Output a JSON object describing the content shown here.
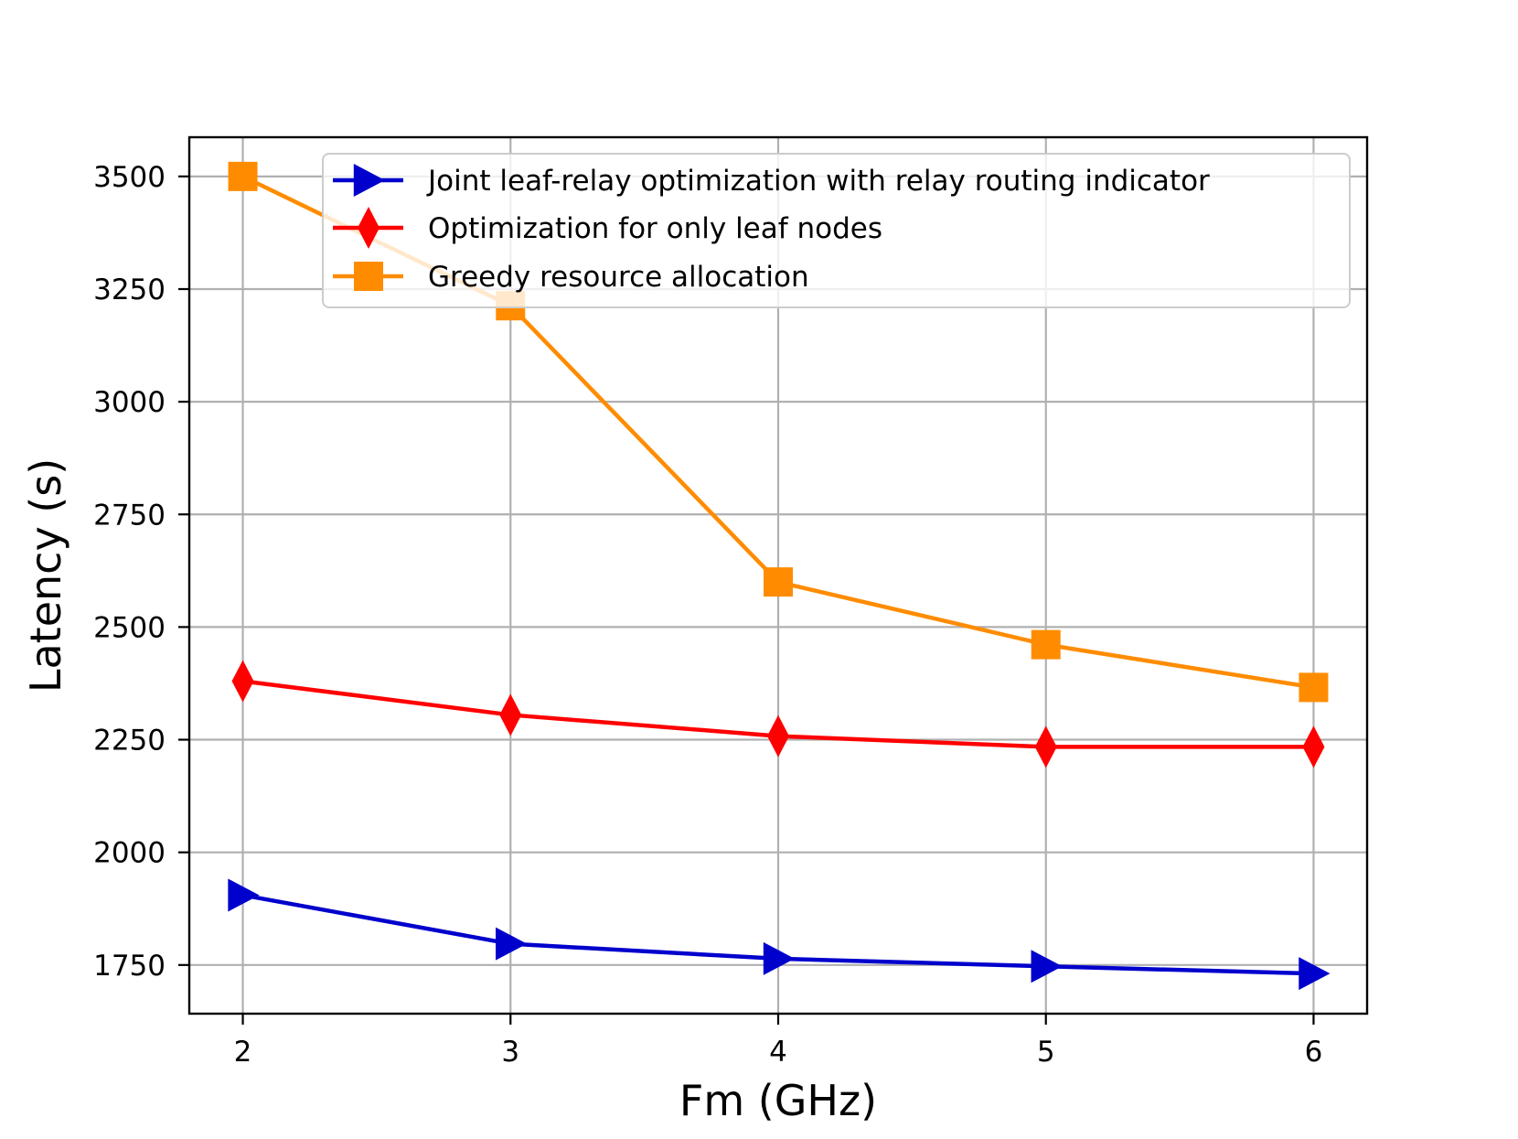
{
  "chart_data": {
    "type": "line",
    "title": "",
    "xlabel": "Fm (GHz)",
    "ylabel": "Latency (s)",
    "x": [
      2,
      3,
      4,
      5,
      6
    ],
    "xlim": [
      1.8,
      6.2
    ],
    "ylim": [
      1642,
      3587
    ],
    "xticks": [
      2,
      3,
      4,
      5,
      6
    ],
    "xtick_labels": [
      "2",
      "3",
      "4",
      "5",
      "6"
    ],
    "yticks": [
      1750,
      2000,
      2250,
      2500,
      2750,
      3000,
      3250,
      3500
    ],
    "ytick_labels": [
      "1750",
      "2000",
      "2250",
      "2500",
      "2750",
      "3000",
      "3250",
      "3500"
    ],
    "grid": true,
    "legend_position": "top-right",
    "series": [
      {
        "name": "Joint leaf-relay optimization with relay routing indicator",
        "color": "#0000CD",
        "marker": "triangle-right",
        "values": [
          1905,
          1797,
          1764,
          1747,
          1731
        ]
      },
      {
        "name": "Optimization for only leaf nodes",
        "color": "#FF0000",
        "marker": "thin-diamond",
        "values": [
          2380,
          2305,
          2258,
          2234,
          2234
        ]
      },
      {
        "name": "Greedy resource allocation",
        "color": "#FF8C00",
        "marker": "square",
        "values": [
          3500,
          3213,
          2600,
          2461,
          2366
        ]
      }
    ]
  }
}
